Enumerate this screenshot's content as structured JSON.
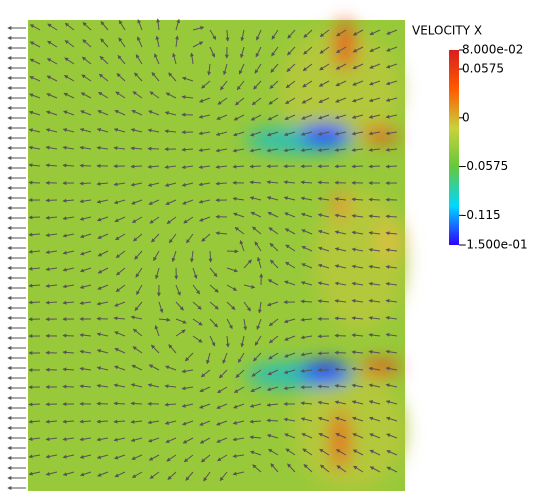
{
  "chart_data": {
    "type": "field",
    "title": "VELOCITY X",
    "clim": [
      -0.15,
      0.08
    ],
    "cticks": [
      {
        "value": 0.08,
        "label": "8.000e-02"
      },
      0.0575,
      0,
      -0.0575,
      -0.115,
      {
        "value": -0.15,
        "label": "-1.500e-01"
      }
    ],
    "colormap": [
      "#2f00ff",
      "#00d8ff",
      "#64c83c",
      "#c8d23c",
      "#ff5a00",
      "#d81e1e"
    ]
  }
}
